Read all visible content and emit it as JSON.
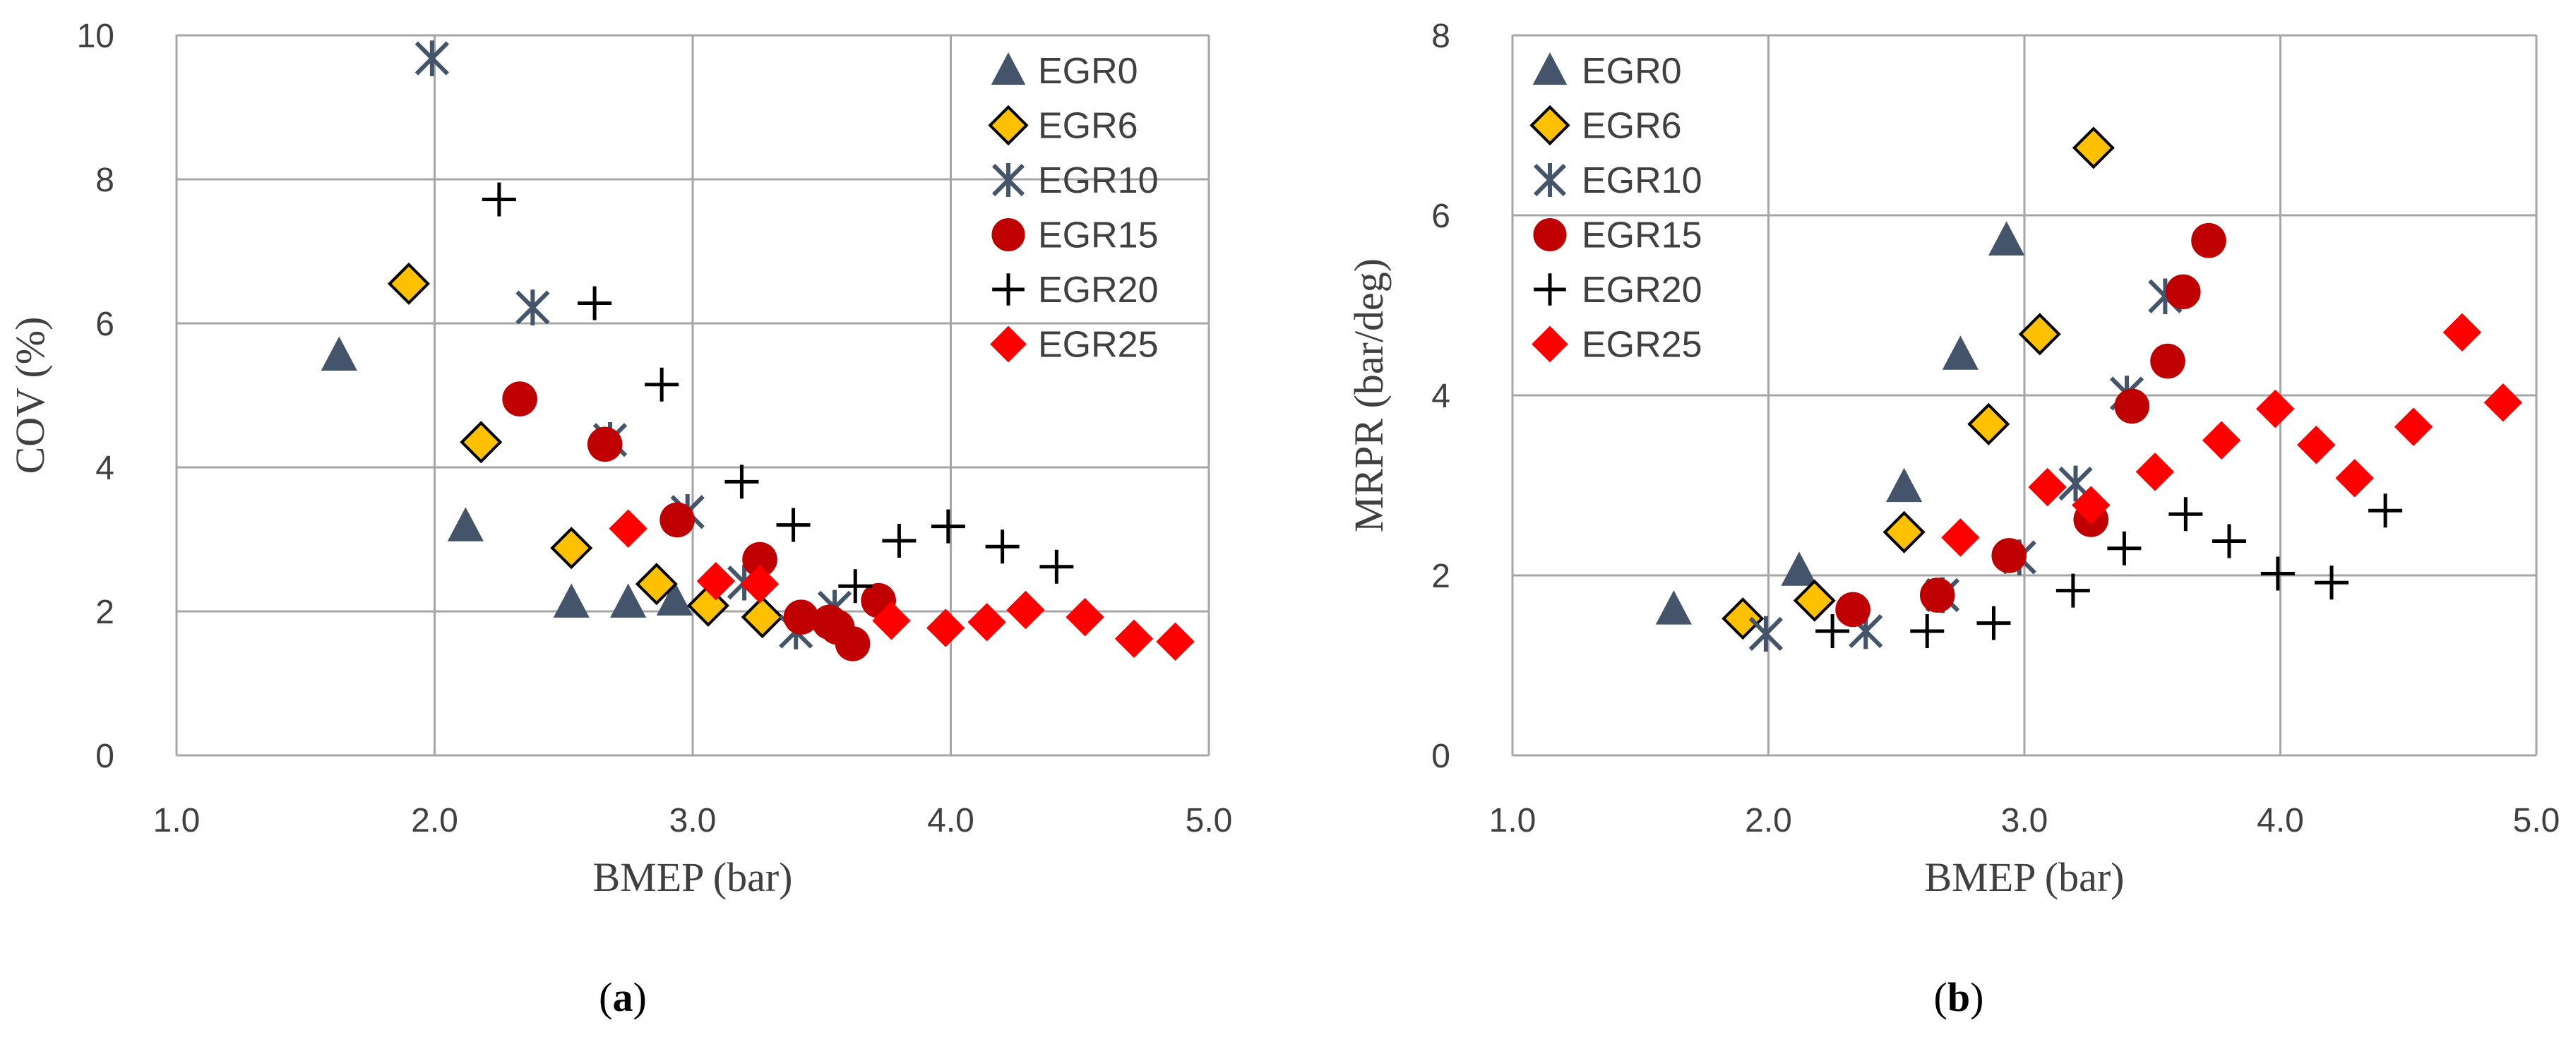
{
  "chart_data": [
    {
      "type": "scatter",
      "id": "cov",
      "caption_open": "(",
      "caption_letter": "a",
      "caption_close": ")",
      "xlabel": "BMEP (bar)",
      "ylabel": "COV (%)",
      "xlim": [
        1.0,
        5.0
      ],
      "ylim": [
        0,
        10
      ],
      "xticks": [
        1.0,
        2.0,
        3.0,
        4.0,
        5.0
      ],
      "xtick_labels": [
        "1.0",
        "2.0",
        "3.0",
        "4.0",
        "5.0"
      ],
      "yticks": [
        0,
        2,
        4,
        6,
        8,
        10
      ],
      "ytick_labels": [
        "0",
        "2",
        "4",
        "6",
        "8",
        "10"
      ],
      "legend_position": "top-right",
      "series": [
        {
          "name": "EGR0",
          "marker": "triangle",
          "color": "#44546a",
          "points": [
            [
              1.63,
              5.55
            ],
            [
              2.12,
              3.18
            ],
            [
              2.53,
              2.12
            ],
            [
              2.75,
              2.12
            ],
            [
              2.93,
              2.15
            ]
          ]
        },
        {
          "name": "EGR6",
          "marker": "diamond",
          "color": "#ffc000",
          "points": [
            [
              1.9,
              6.55
            ],
            [
              2.18,
              4.35
            ],
            [
              2.53,
              2.88
            ],
            [
              2.86,
              2.38
            ],
            [
              3.06,
              2.08
            ],
            [
              3.27,
              1.92
            ]
          ]
        },
        {
          "name": "EGR10",
          "marker": "asterisk",
          "color": "#44546a",
          "points": [
            [
              1.99,
              9.68
            ],
            [
              2.38,
              6.22
            ],
            [
              2.68,
              4.38
            ],
            [
              2.98,
              3.38
            ],
            [
              3.2,
              2.4
            ],
            [
              3.4,
              1.72
            ],
            [
              3.55,
              2.05
            ]
          ]
        },
        {
          "name": "EGR15",
          "marker": "circle",
          "color": "#c00000",
          "points": [
            [
              2.33,
              4.95
            ],
            [
              2.66,
              4.32
            ],
            [
              2.94,
              3.27
            ],
            [
              3.26,
              2.72
            ],
            [
              3.42,
              1.92
            ],
            [
              3.53,
              1.85
            ],
            [
              3.56,
              1.78
            ],
            [
              3.62,
              1.55
            ],
            [
              3.72,
              2.15
            ]
          ]
        },
        {
          "name": "EGR20",
          "marker": "plus",
          "color": "#000000",
          "points": [
            [
              2.25,
              7.72
            ],
            [
              2.62,
              6.28
            ],
            [
              2.88,
              5.15
            ],
            [
              3.19,
              3.8
            ],
            [
              3.39,
              3.2
            ],
            [
              3.63,
              2.35
            ],
            [
              3.8,
              2.98
            ],
            [
              3.99,
              3.18
            ],
            [
              4.2,
              2.9
            ],
            [
              4.41,
              2.62
            ]
          ]
        },
        {
          "name": "EGR25",
          "marker": "diamond",
          "color": "#ff0000",
          "points": [
            [
              2.75,
              3.15
            ],
            [
              3.09,
              2.42
            ],
            [
              3.26,
              2.38
            ],
            [
              3.77,
              1.87
            ],
            [
              3.98,
              1.77
            ],
            [
              4.14,
              1.85
            ],
            [
              4.29,
              2.02
            ],
            [
              4.52,
              1.92
            ],
            [
              4.71,
              1.62
            ],
            [
              4.87,
              1.58
            ]
          ]
        }
      ]
    },
    {
      "type": "scatter",
      "id": "mrpr",
      "caption_open": "(",
      "caption_letter": "b",
      "caption_close": ")",
      "xlabel": "BMEP (bar)",
      "ylabel": "MRPR (bar/deg)",
      "xlim": [
        1.0,
        5.0
      ],
      "ylim": [
        0,
        8
      ],
      "xticks": [
        1.0,
        2.0,
        3.0,
        4.0,
        5.0
      ],
      "xtick_labels": [
        "1.0",
        "2.0",
        "3.0",
        "4.0",
        "5.0"
      ],
      "yticks": [
        0,
        2,
        4,
        6,
        8
      ],
      "ytick_labels": [
        "0",
        "2",
        "4",
        "6",
        "8"
      ],
      "legend_position": "top-left",
      "series": [
        {
          "name": "EGR0",
          "marker": "triangle",
          "color": "#44546a",
          "points": [
            [
              1.63,
              1.62
            ],
            [
              2.12,
              2.05
            ],
            [
              2.53,
              2.98
            ],
            [
              2.75,
              4.45
            ],
            [
              2.93,
              5.72
            ]
          ]
        },
        {
          "name": "EGR6",
          "marker": "diamond",
          "color": "#ffc000",
          "points": [
            [
              1.9,
              1.52
            ],
            [
              2.18,
              1.72
            ],
            [
              2.53,
              2.48
            ],
            [
              2.86,
              3.68
            ],
            [
              3.06,
              4.68
            ],
            [
              3.27,
              6.75
            ]
          ]
        },
        {
          "name": "EGR10",
          "marker": "asterisk",
          "color": "#44546a",
          "points": [
            [
              1.99,
              1.35
            ],
            [
              2.38,
              1.38
            ],
            [
              2.68,
              1.78
            ],
            [
              2.98,
              2.2
            ],
            [
              3.2,
              3.02
            ],
            [
              3.4,
              4.02
            ],
            [
              3.55,
              5.1
            ]
          ]
        },
        {
          "name": "EGR15",
          "marker": "circle",
          "color": "#c00000",
          "points": [
            [
              2.33,
              1.62
            ],
            [
              2.66,
              1.78
            ],
            [
              2.94,
              2.22
            ],
            [
              3.26,
              2.62
            ],
            [
              3.42,
              3.88
            ],
            [
              3.56,
              4.38
            ],
            [
              3.62,
              5.15
            ],
            [
              3.72,
              5.72
            ]
          ]
        },
        {
          "name": "EGR20",
          "marker": "plus",
          "color": "#000000",
          "points": [
            [
              2.25,
              1.38
            ],
            [
              2.62,
              1.38
            ],
            [
              2.88,
              1.47
            ],
            [
              3.19,
              1.83
            ],
            [
              3.39,
              2.3
            ],
            [
              3.63,
              2.68
            ],
            [
              3.8,
              2.38
            ],
            [
              3.99,
              2.02
            ],
            [
              4.2,
              1.92
            ],
            [
              4.41,
              2.72
            ]
          ]
        },
        {
          "name": "EGR25",
          "marker": "diamond",
          "color": "#ff0000",
          "points": [
            [
              2.75,
              2.42
            ],
            [
              3.09,
              2.98
            ],
            [
              3.26,
              2.78
            ],
            [
              3.51,
              3.15
            ],
            [
              3.77,
              3.5
            ],
            [
              3.98,
              3.85
            ],
            [
              4.14,
              3.45
            ],
            [
              4.29,
              3.08
            ],
            [
              4.52,
              3.65
            ],
            [
              4.71,
              4.7
            ],
            [
              4.87,
              3.92
            ]
          ]
        }
      ]
    }
  ]
}
